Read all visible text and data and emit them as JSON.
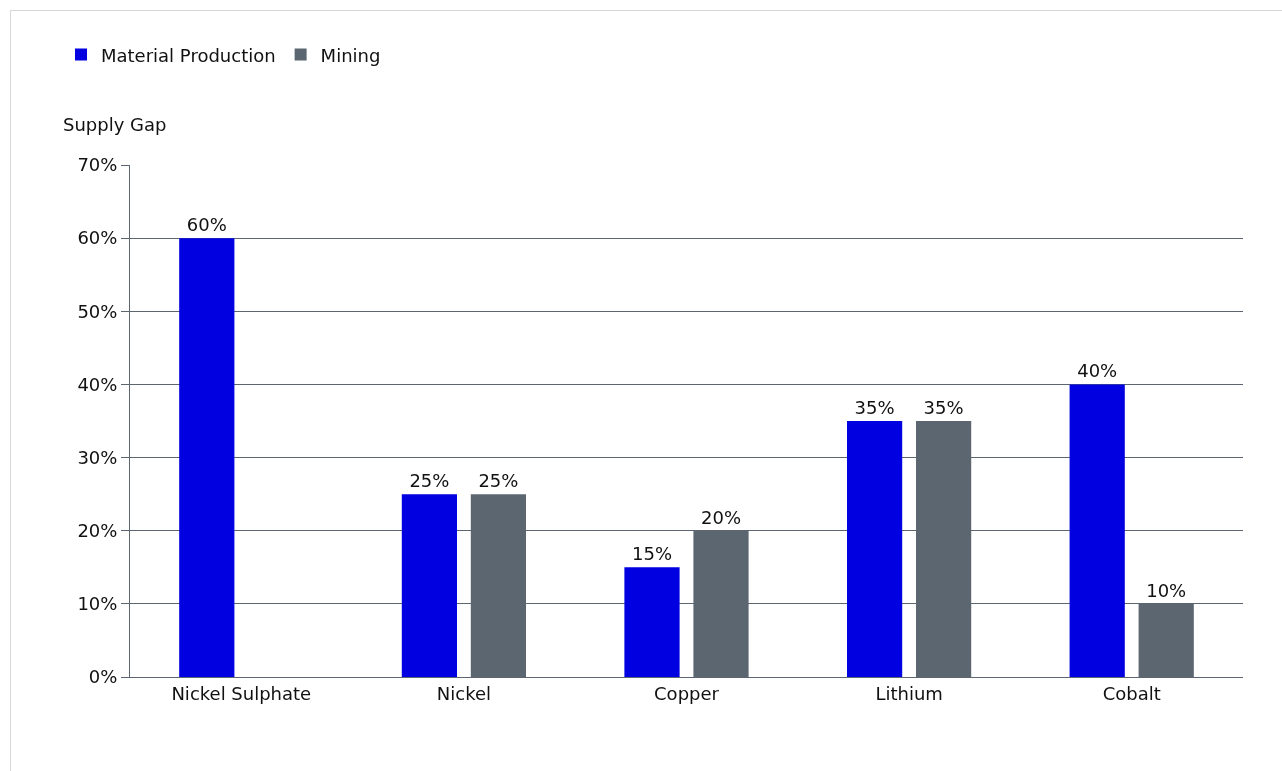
{
  "chart_data": {
    "type": "bar",
    "ylabel": "Supply Gap",
    "categories": [
      "Nickel Sulphate",
      "Nickel",
      "Copper",
      "Lithium",
      "Cobalt"
    ],
    "series": [
      {
        "name": "Material Production",
        "color": "#0000e0",
        "values": [
          60,
          25,
          15,
          35,
          40
        ],
        "value_labels": [
          "60%",
          "25%",
          "15%",
          "35%",
          "40%"
        ]
      },
      {
        "name": "Mining",
        "color": "#5c6670",
        "values": [
          null,
          25,
          20,
          35,
          10
        ],
        "value_labels": [
          null,
          "25%",
          "20%",
          "35%",
          "10%"
        ]
      }
    ],
    "ylim": [
      0,
      70
    ],
    "yticks": [
      {
        "value": 0,
        "label": "0%"
      },
      {
        "value": 10,
        "label": "10%"
      },
      {
        "value": 20,
        "label": "20%"
      },
      {
        "value": 30,
        "label": "30%"
      },
      {
        "value": 40,
        "label": "40%"
      },
      {
        "value": 50,
        "label": "50%"
      },
      {
        "value": 60,
        "label": "60%"
      },
      {
        "value": 70,
        "label": "70%"
      }
    ],
    "grid": "y",
    "legend": "top left"
  }
}
